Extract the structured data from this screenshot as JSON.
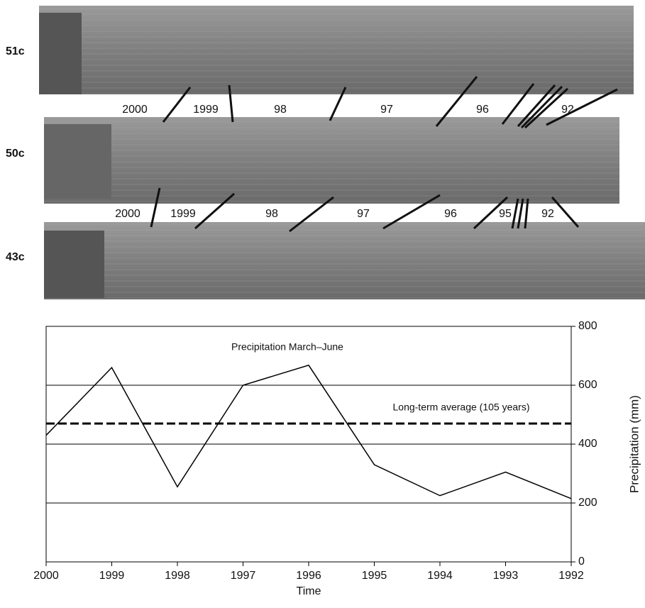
{
  "photo": {
    "samples": [
      "51c",
      "50c",
      "43c"
    ],
    "ring_labels": [
      [
        "2000",
        "1999",
        "98",
        "97",
        "96",
        "92"
      ],
      [
        "2000",
        "1999",
        "98",
        "97",
        "96",
        "95",
        "92"
      ]
    ]
  },
  "chart_data": {
    "type": "line",
    "annotation": "Precipitation March–June",
    "x_label": "Time",
    "y_label": "Precipitation (mm)",
    "x": [
      2000,
      1999,
      1998,
      1997,
      1996,
      1995,
      1994,
      1993,
      1992
    ],
    "xlim": [
      2000,
      1992
    ],
    "xticks": [
      2000,
      1999,
      1998,
      1997,
      1996,
      1995,
      1994,
      1993,
      1992
    ],
    "ylim": [
      0,
      800
    ],
    "yticks": [
      0,
      200,
      400,
      600,
      800
    ],
    "grid": true,
    "y_axis_side": "right",
    "series": [
      {
        "color": "#000000",
        "values": [
          430,
          660,
          255,
          600,
          668,
          330,
          225,
          305,
          215
        ]
      }
    ],
    "reference_line": {
      "value": 470,
      "label": "Long-term average (105 years)",
      "color": "#000000"
    }
  }
}
